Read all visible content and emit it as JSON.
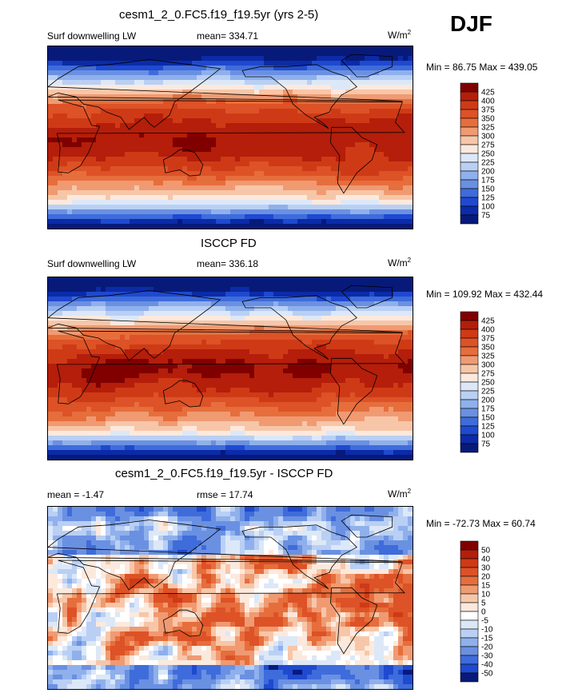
{
  "season": "DJF",
  "panels": [
    {
      "title": "cesm1_2_0.FC5.f19_f19.5yr (yrs 2-5)",
      "left_label": "Surf downwelling LW",
      "center_label": "mean= 334.71",
      "units": "W/m",
      "units_sup": "2",
      "minmax": "Min =  86.75 Max = 439.05",
      "colorbar_levels": [
        "425",
        "400",
        "375",
        "350",
        "325",
        "300",
        "275",
        "250",
        "225",
        "200",
        "175",
        "150",
        "125",
        "100",
        "75"
      ],
      "colors": [
        "#800000",
        "#b41e0a",
        "#cf3a16",
        "#dd5226",
        "#e66e3c",
        "#f09a72",
        "#f7c6a8",
        "#fce9dd",
        "#dce8f8",
        "#b9cff4",
        "#8fb0ec",
        "#6a90e2",
        "#3f6cdb",
        "#1f49cf",
        "#0b2ba8",
        "#071a7a"
      ],
      "field": "abs"
    },
    {
      "title": "ISCCP FD",
      "left_label": "Surf downwelling LW",
      "center_label": "mean= 336.18",
      "units": "W/m",
      "units_sup": "2",
      "minmax": "Min = 109.92 Max = 432.44",
      "colorbar_levels": [
        "425",
        "400",
        "375",
        "350",
        "325",
        "300",
        "275",
        "250",
        "225",
        "200",
        "175",
        "150",
        "125",
        "100",
        "75"
      ],
      "colors": [
        "#800000",
        "#b41e0a",
        "#cf3a16",
        "#dd5226",
        "#e66e3c",
        "#f09a72",
        "#f7c6a8",
        "#fce9dd",
        "#dce8f8",
        "#b9cff4",
        "#8fb0ec",
        "#6a90e2",
        "#3f6cdb",
        "#1f49cf",
        "#0b2ba8",
        "#071a7a"
      ],
      "field": "abs2"
    },
    {
      "title": "cesm1_2_0.FC5.f19_f19.5yr - ISCCP FD",
      "left_label": "mean =  -1.47",
      "center_label": "rmse =  17.74",
      "units": "W/m",
      "units_sup": "2",
      "minmax": "Min = -72.73 Max =  60.74",
      "colorbar_levels": [
        "50",
        "40",
        "30",
        "20",
        "15",
        "10",
        "5",
        "0",
        "-5",
        "-10",
        "-15",
        "-20",
        "-30",
        "-40",
        "-50"
      ],
      "colors": [
        "#800000",
        "#b41e0a",
        "#cf3a16",
        "#dd5226",
        "#e66e3c",
        "#f09a72",
        "#f7c6a8",
        "#fce9dd",
        "#ffffff",
        "#dce8f8",
        "#b9cff4",
        "#8fb0ec",
        "#6a90e2",
        "#3f6cdb",
        "#1f49cf",
        "#071a7a"
      ],
      "field": "diff"
    }
  ],
  "chart_data": [
    {
      "type": "heatmap",
      "title": "cesm1_2_0.FC5.f19_f19.5yr (yrs 2-5)",
      "variable": "Surf downwelling LW",
      "units": "W/m2",
      "mean": 334.71,
      "min": 86.75,
      "max": 439.05,
      "levels": [
        75,
        100,
        125,
        150,
        175,
        200,
        225,
        250,
        275,
        300,
        325,
        350,
        375,
        400,
        425
      ]
    },
    {
      "type": "heatmap",
      "title": "ISCCP FD",
      "variable": "Surf downwelling LW",
      "units": "W/m2",
      "mean": 336.18,
      "min": 109.92,
      "max": 432.44,
      "levels": [
        75,
        100,
        125,
        150,
        175,
        200,
        225,
        250,
        275,
        300,
        325,
        350,
        375,
        400,
        425
      ]
    },
    {
      "type": "heatmap",
      "title": "cesm1_2_0.FC5.f19_f19.5yr - ISCCP FD",
      "units": "W/m2",
      "mean": -1.47,
      "rmse": 17.74,
      "min": -72.73,
      "max": 60.74,
      "levels": [
        -50,
        -40,
        -30,
        -20,
        -15,
        -10,
        -5,
        0,
        5,
        10,
        15,
        20,
        30,
        40,
        50
      ]
    }
  ]
}
